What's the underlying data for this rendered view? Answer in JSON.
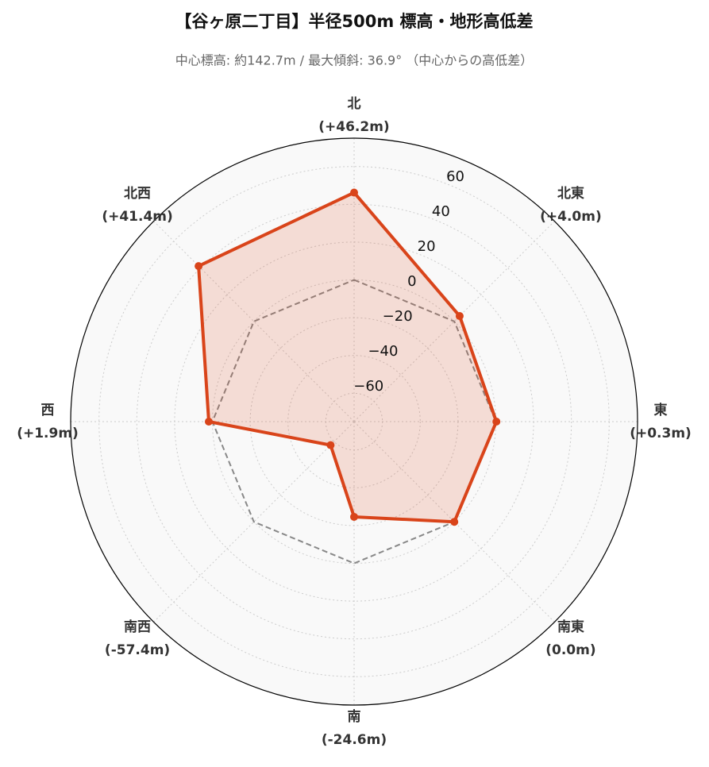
{
  "chart_data": {
    "type": "radar",
    "title": "【谷ヶ原二丁目】半径500m 標高・地形高低差",
    "subtitle": "中心標高: 約142.7m / 最大傾斜: 36.9° （中心からの高低差）",
    "categories": [
      "北",
      "北東",
      "東",
      "南東",
      "南",
      "南西",
      "西",
      "北西"
    ],
    "values": [
      46.2,
      4.0,
      0.3,
      0.0,
      -24.6,
      -57.4,
      1.9,
      41.4
    ],
    "value_labels": [
      "(+46.2m)",
      "(+4.0m)",
      "(+0.3m)",
      "(0.0m)",
      "(-24.6m)",
      "(-57.4m)",
      "(+1.9m)",
      "(+41.4m)"
    ],
    "color": "#d9441a",
    "ylim": [
      -75,
      75
    ],
    "yticks": [
      {
        "value": -60,
        "label": "−60"
      },
      {
        "value": -40,
        "label": "−40"
      },
      {
        "value": -20,
        "label": "−20"
      },
      0,
      20,
      40,
      60
    ],
    "grid": true
  }
}
